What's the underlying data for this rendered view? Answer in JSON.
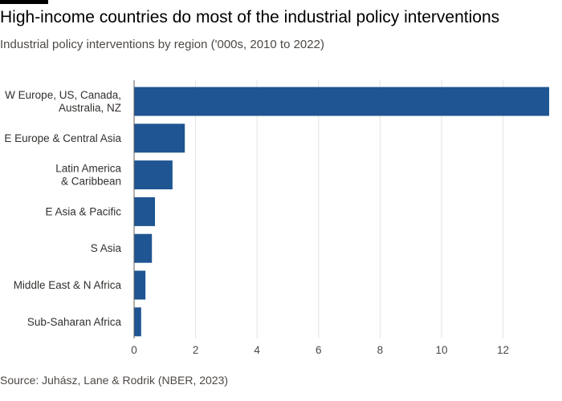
{
  "header": {
    "title": "High-income countries do most of the industrial policy interventions",
    "subtitle": "Industrial policy interventions by region ('000s, 2010 to 2022)"
  },
  "footer": {
    "source": "Source: Juhász, Lane & Rodrik (NBER, 2023)"
  },
  "colors": {
    "bar": "#1f5592",
    "grid": "#e6e3e0",
    "axis": "#66605c"
  },
  "chart_data": {
    "type": "bar",
    "orientation": "horizontal",
    "title": "High-income countries do most of the industrial policy interventions",
    "subtitle": "Industrial policy interventions by region ('000s, 2010 to 2022)",
    "categories": [
      [
        "W Europe, US, Canada,",
        "Australia, NZ"
      ],
      [
        "E Europe & Central Asia"
      ],
      [
        "Latin America",
        "& Caribbean"
      ],
      [
        "E Asia & Pacific"
      ],
      [
        "S Asia"
      ],
      [
        "Middle East & N Africa"
      ],
      [
        "Sub-Saharan Africa"
      ]
    ],
    "values": [
      13.5,
      1.65,
      1.25,
      0.68,
      0.58,
      0.37,
      0.23
    ],
    "xlabel": "",
    "ylabel": "",
    "xlim": [
      0,
      13.5
    ],
    "xticks": [
      0,
      2,
      4,
      6,
      8,
      10,
      12
    ],
    "grid": true,
    "legend": "none"
  }
}
